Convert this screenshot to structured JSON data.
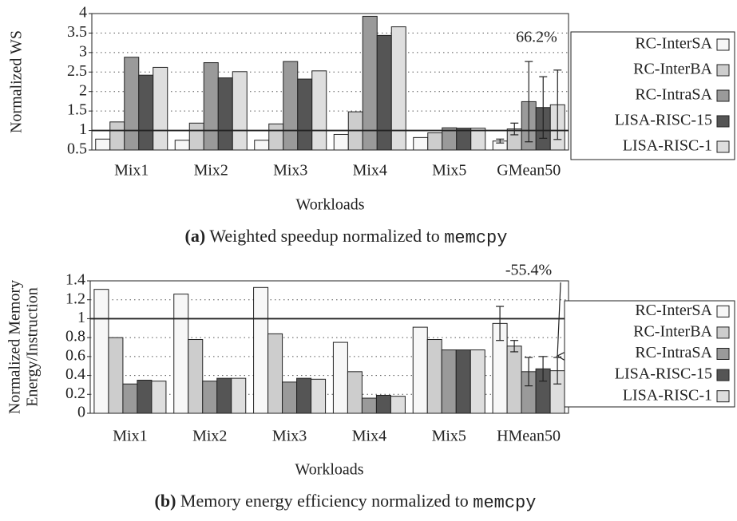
{
  "chart_data": [
    {
      "type": "bar",
      "y_label": "Normalized WS",
      "x_label": "Workloads",
      "caption_label": "(a)",
      "caption": "Weighted speedup normalized to",
      "caption_code": "memcpy",
      "annotation": "66.2%",
      "categories": [
        "Mix1",
        "Mix2",
        "Mix3",
        "Mix4",
        "Mix5",
        "GMean50"
      ],
      "series": [
        {
          "name": "RC-InterSA",
          "color": "#f7f7f7",
          "values": [
            0.78,
            0.75,
            0.75,
            0.9,
            0.82,
            0.73
          ],
          "errors": [
            null,
            null,
            null,
            null,
            null,
            0.05
          ]
        },
        {
          "name": "RC-InterBA",
          "color": "#cdcdcd",
          "values": [
            1.22,
            1.19,
            1.17,
            1.48,
            0.94,
            1.04
          ],
          "errors": [
            null,
            null,
            null,
            null,
            null,
            0.15
          ]
        },
        {
          "name": "RC-IntraSA",
          "color": "#9a9a9a",
          "values": [
            2.88,
            2.74,
            2.77,
            3.93,
            1.07,
            1.74
          ],
          "errors": [
            null,
            null,
            null,
            null,
            null,
            1.03
          ]
        },
        {
          "name": "LISA-RISC-15",
          "color": "#555555",
          "values": [
            2.42,
            2.35,
            2.32,
            3.44,
            1.06,
            1.59
          ],
          "errors": [
            null,
            null,
            null,
            null,
            null,
            0.79
          ]
        },
        {
          "name": "LISA-RISC-1",
          "color": "#dedede",
          "values": [
            2.62,
            2.51,
            2.53,
            3.66,
            1.06,
            1.66
          ],
          "errors": [
            null,
            null,
            null,
            null,
            null,
            0.89
          ]
        }
      ],
      "ylim": [
        0.5,
        4
      ],
      "yticks": [
        0.5,
        1,
        1.5,
        2,
        2.5,
        3,
        3.5,
        4
      ],
      "grid": true,
      "reference_line": 1,
      "legend": "right"
    },
    {
      "type": "bar",
      "y_label": [
        "Normalized Memory",
        "Energy/Instruction"
      ],
      "x_label": "Workloads",
      "caption_label": "(b)",
      "caption": "Memory energy efficiency normalized to",
      "caption_code": "memcpy",
      "annotation": "-55.4%",
      "categories": [
        "Mix1",
        "Mix2",
        "Mix3",
        "Mix4",
        "Mix5",
        "HMean50"
      ],
      "series": [
        {
          "name": "RC-InterSA",
          "color": "#f7f7f7",
          "values": [
            1.31,
            1.26,
            1.33,
            0.75,
            0.91,
            0.95
          ],
          "errors": [
            null,
            null,
            null,
            null,
            null,
            0.18
          ]
        },
        {
          "name": "RC-InterBA",
          "color": "#cdcdcd",
          "values": [
            0.8,
            0.78,
            0.84,
            0.44,
            0.78,
            0.71
          ],
          "errors": [
            null,
            null,
            null,
            null,
            null,
            0.06
          ]
        },
        {
          "name": "RC-IntraSA",
          "color": "#9a9a9a",
          "values": [
            0.31,
            0.34,
            0.33,
            0.16,
            0.67,
            0.44
          ],
          "errors": [
            null,
            null,
            null,
            null,
            null,
            0.15
          ]
        },
        {
          "name": "LISA-RISC-15",
          "color": "#555555",
          "values": [
            0.35,
            0.37,
            0.37,
            0.19,
            0.67,
            0.47
          ],
          "errors": [
            null,
            null,
            null,
            null,
            null,
            0.13
          ]
        },
        {
          "name": "LISA-RISC-1",
          "color": "#dedede",
          "values": [
            0.34,
            0.37,
            0.36,
            0.18,
            0.67,
            0.45
          ],
          "errors": [
            null,
            null,
            null,
            null,
            null,
            0.14
          ]
        }
      ],
      "ylim": [
        0,
        1.4
      ],
      "yticks": [
        0,
        0.2,
        0.4,
        0.6,
        0.8,
        1,
        1.2,
        1.4
      ],
      "grid": true,
      "reference_line": 1,
      "legend": "right"
    }
  ]
}
